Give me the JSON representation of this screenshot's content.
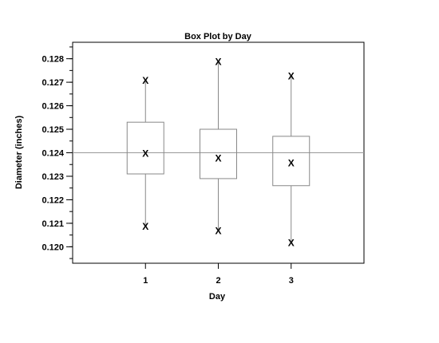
{
  "chart_data": {
    "type": "box",
    "title": "Box Plot by Day",
    "xlabel": "Day",
    "ylabel": "Diameter (inches)",
    "categories": [
      "1",
      "2",
      "3"
    ],
    "x_ticks": [
      "1",
      "2",
      "3"
    ],
    "xlim": [
      0,
      4
    ],
    "ylim": [
      0.1193,
      0.1287
    ],
    "y_ticks": [
      "0.120",
      "0.121",
      "0.122",
      "0.123",
      "0.124",
      "0.125",
      "0.126",
      "0.127",
      "0.128"
    ],
    "y_tick_values": [
      0.12,
      0.121,
      0.122,
      0.123,
      0.124,
      0.125,
      0.126,
      0.127,
      0.128
    ],
    "y_minor_step": 0.0005,
    "reference_line": 0.124,
    "grid": false,
    "marker_symbol": "X",
    "boxes": [
      {
        "category": "1",
        "min": 0.1209,
        "q1": 0.1231,
        "median": 0.124,
        "q3": 0.1253,
        "max": 0.1271
      },
      {
        "category": "2",
        "min": 0.1207,
        "q1": 0.1229,
        "median": 0.1238,
        "q3": 0.125,
        "max": 0.1279
      },
      {
        "category": "3",
        "min": 0.1202,
        "q1": 0.1226,
        "median": 0.1236,
        "q3": 0.1247,
        "max": 0.1273
      }
    ],
    "colors": {
      "box": "#888888",
      "axis": "#000000",
      "reference": "#999999",
      "text": "#000000"
    }
  }
}
